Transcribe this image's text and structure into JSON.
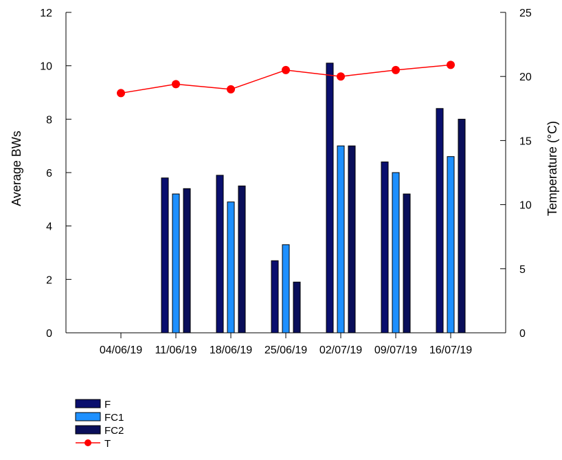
{
  "chart_data": {
    "type": "bar",
    "categories": [
      "04/06/19",
      "11/06/19",
      "18/06/19",
      "25/06/19",
      "02/07/19",
      "09/07/19",
      "16/07/19"
    ],
    "series": [
      {
        "name": "F",
        "axis": "left",
        "color": "#0a0f6e",
        "values": [
          null,
          5.8,
          5.9,
          2.7,
          10.1,
          6.4,
          8.4
        ]
      },
      {
        "name": "FC1",
        "axis": "left",
        "color": "#1e90ff",
        "values": [
          null,
          5.2,
          4.9,
          3.3,
          7.0,
          6.0,
          6.6
        ]
      },
      {
        "name": "FC2",
        "axis": "left",
        "color": "#0a0f5a",
        "values": [
          null,
          5.4,
          5.5,
          1.9,
          7.0,
          5.2,
          8.0
        ]
      }
    ],
    "line_series": [
      {
        "name": "T",
        "axis": "right",
        "color": "#ff0000",
        "values": [
          18.7,
          19.4,
          19.0,
          20.5,
          20.0,
          20.5,
          20.9
        ]
      }
    ],
    "ylabel": "Average BWs",
    "y2label": "Temperature (°C)",
    "ylim": [
      0,
      12
    ],
    "y2lim": [
      0,
      25
    ],
    "yticks": [
      "0",
      "2",
      "4",
      "6",
      "8",
      "10",
      "12"
    ],
    "y2ticks": [
      "0",
      "5",
      "10",
      "15",
      "20",
      "25"
    ],
    "grid": false,
    "legend_position": "bottom-left"
  }
}
